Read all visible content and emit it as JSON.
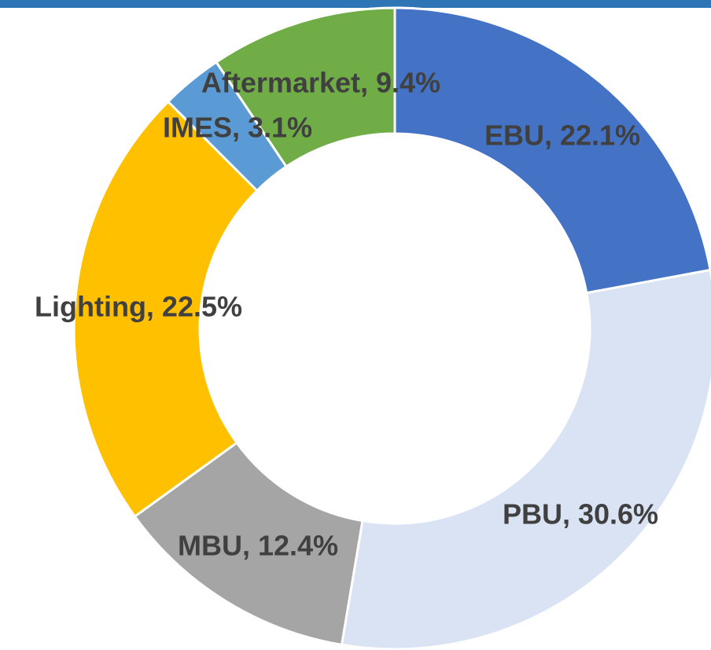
{
  "chart_data": {
    "type": "donut",
    "categories": [
      "EBU",
      "PBU",
      "MBU",
      "Lighting",
      "IMES",
      "Aftermarket"
    ],
    "values": [
      22.1,
      30.6,
      12.4,
      22.5,
      3.1,
      9.4
    ],
    "value_labels": [
      "EBU, 22.1%",
      "PBU, 30.6%",
      "MBU, 12.4%",
      "Lighting, 22.5%",
      "IMES, 3.1%",
      "Aftermarket, 9.4%"
    ],
    "colors": [
      "#4472c4",
      "#dae3f3",
      "#a5a5a5",
      "#ffc000",
      "#5b9bd5",
      "#70ad47"
    ]
  }
}
